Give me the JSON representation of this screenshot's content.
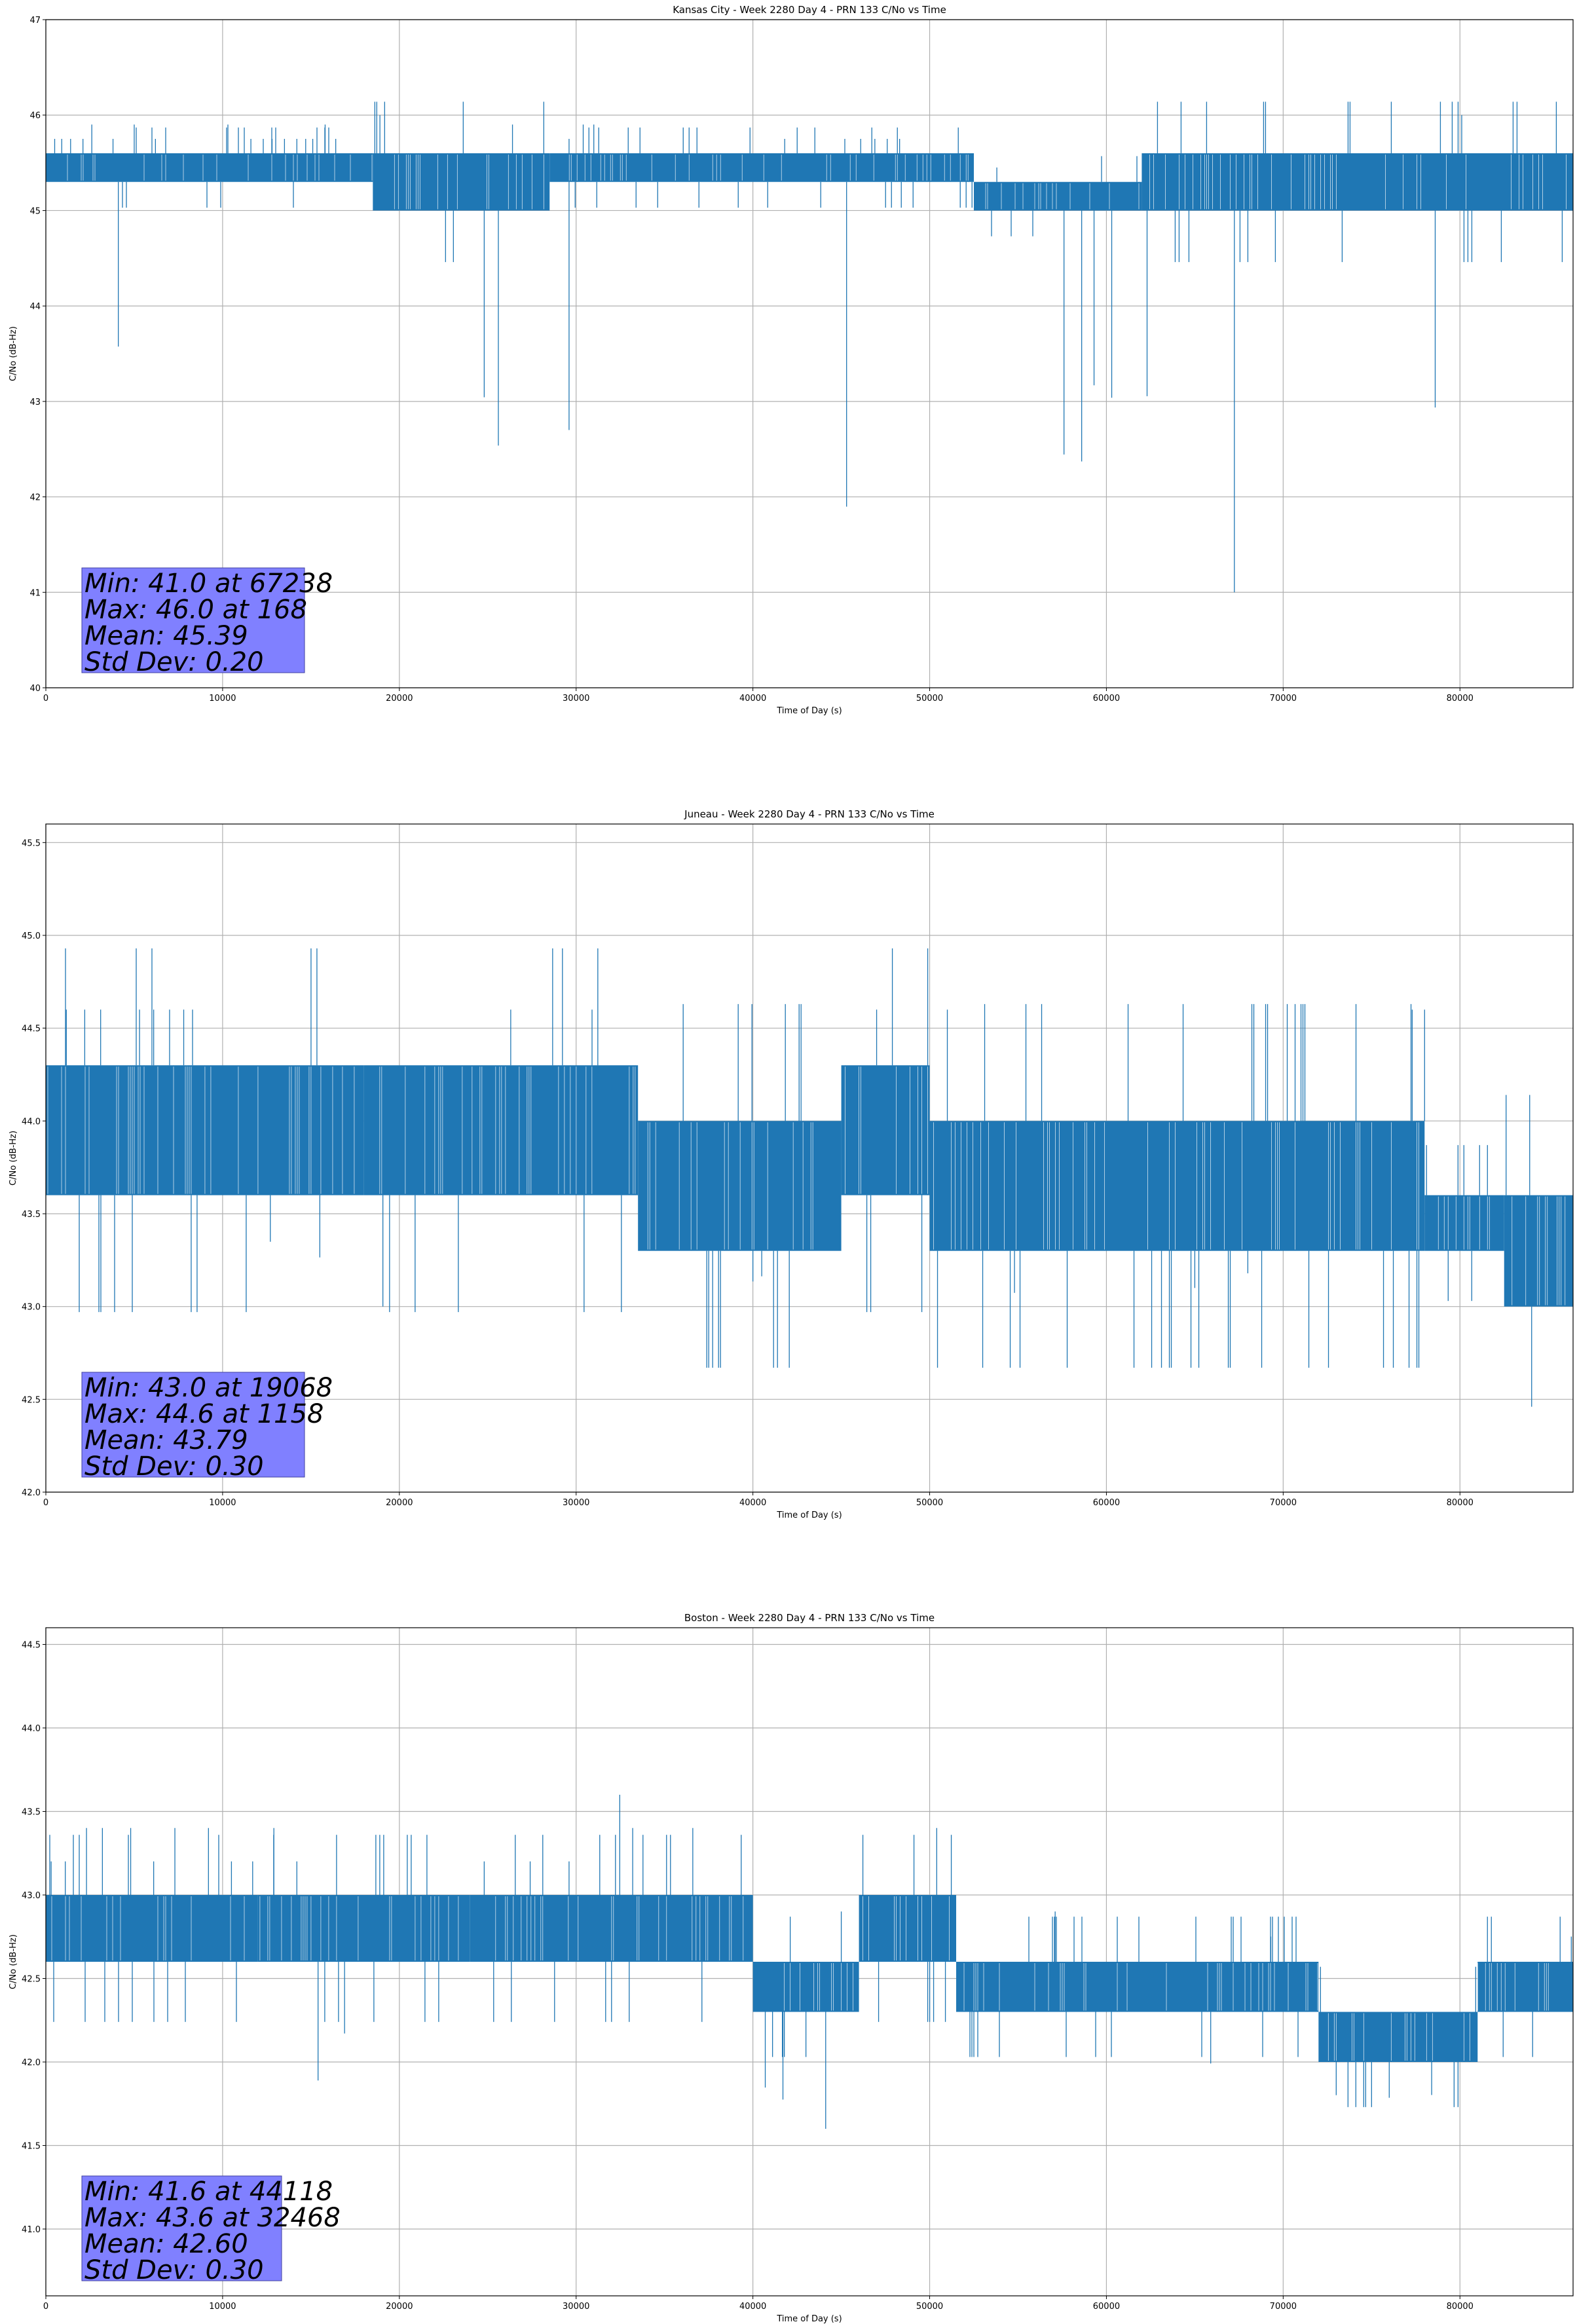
{
  "chart_data": [
    {
      "type": "line",
      "title": "Kansas City - Week 2280 Day 4 - PRN 133 C/No vs Time",
      "xlabel": "Time of Day (s)",
      "ylabel": "C/No (dB-Hz)",
      "xlim": [
        0,
        86400
      ],
      "ylim": [
        40,
        47
      ],
      "xticks": [
        0,
        10000,
        20000,
        30000,
        40000,
        50000,
        60000,
        70000,
        80000
      ],
      "xtick_labels": [
        "0",
        "10000",
        "20000",
        "30000",
        "40000",
        "50000",
        "60000",
        "70000",
        "80000"
      ],
      "yticks": [
        40,
        41,
        42,
        43,
        44,
        45,
        46,
        47
      ],
      "ytick_labels": [
        "40",
        "41",
        "42",
        "43",
        "44",
        "45",
        "46",
        "47"
      ],
      "grid": true,
      "series_color": "#1f77b4",
      "series": [
        {
          "name": "C/No",
          "segments": [
            {
              "x0": 0,
              "x1": 18500,
              "low": 45.3,
              "high": 45.6
            },
            {
              "x0": 18500,
              "x1": 28500,
              "low": 45.0,
              "high": 45.6
            },
            {
              "x0": 28500,
              "x1": 52500,
              "low": 45.3,
              "high": 45.6
            },
            {
              "x0": 52500,
              "x1": 62000,
              "low": 45.0,
              "high": 45.3
            },
            {
              "x0": 62000,
              "x1": 86400,
              "low": 45.0,
              "high": 45.6
            }
          ],
          "spikes_up": [
            500,
            900,
            1400,
            2100,
            2600,
            3800,
            5000,
            6200,
            10300,
            11600,
            12300,
            12800,
            13500,
            14200,
            14700,
            15100,
            15800,
            16400,
            18900,
            26400,
            29600,
            30400,
            31000,
            41800,
            45200,
            46100,
            46900,
            47600,
            48300,
            53800,
            80100
          ],
          "spikes_down": [
            4100,
            24800,
            25600,
            29600,
            45300,
            57600,
            58600,
            59300,
            60300,
            62300,
            67238,
            78600
          ]
        }
      ],
      "stats": {
        "min_value": 41.0,
        "min_time": 67238,
        "max_value": 46.0,
        "max_time": 168,
        "mean": 45.39,
        "std_dev": 0.2
      },
      "stats_lines": [
        "Min: 41.0 at 67238",
        "Max: 46.0 at 168",
        "Mean: 45.39",
        "Std Dev: 0.20"
      ]
    },
    {
      "type": "line",
      "title": "Juneau - Week 2280 Day 4 - PRN 133 C/No vs Time",
      "xlabel": "Time of Day (s)",
      "ylabel": "C/No (dB-Hz)",
      "xlim": [
        0,
        86400
      ],
      "ylim": [
        42.0,
        45.6
      ],
      "xticks": [
        0,
        10000,
        20000,
        30000,
        40000,
        50000,
        60000,
        70000,
        80000
      ],
      "xtick_labels": [
        "0",
        "10000",
        "20000",
        "30000",
        "40000",
        "50000",
        "60000",
        "70000",
        "80000"
      ],
      "yticks": [
        42.0,
        42.5,
        43.0,
        43.5,
        44.0,
        44.5,
        45.0,
        45.5
      ],
      "ytick_labels": [
        "42.0",
        "42.5",
        "43.0",
        "43.5",
        "44.0",
        "44.5",
        "45.0",
        "45.5"
      ],
      "grid": true,
      "series_color": "#1f77b4",
      "series": [
        {
          "name": "C/No",
          "segments": [
            {
              "x0": 0,
              "x1": 8000,
              "low": 43.6,
              "high": 44.3
            },
            {
              "x0": 8000,
              "x1": 18000,
              "low": 43.6,
              "high": 44.3
            },
            {
              "x0": 18000,
              "x1": 33500,
              "low": 43.6,
              "high": 44.3
            },
            {
              "x0": 33500,
              "x1": 45000,
              "low": 43.3,
              "high": 44.0
            },
            {
              "x0": 45000,
              "x1": 50000,
              "low": 43.6,
              "high": 44.3
            },
            {
              "x0": 50000,
              "x1": 78000,
              "low": 43.3,
              "high": 44.0
            },
            {
              "x0": 78000,
              "x1": 82500,
              "low": 43.3,
              "high": 43.6
            },
            {
              "x0": 82500,
              "x1": 86400,
              "low": 43.0,
              "high": 43.6
            }
          ],
          "spikes_up": [
            1158,
            2200,
            3100,
            5300,
            6100,
            7000,
            7800,
            8300,
            26300,
            30900,
            47000,
            51000,
            77300,
            78000
          ],
          "spikes_down": [
            12700,
            15500,
            19068,
            40000,
            40500,
            54800,
            65000,
            68000
          ]
        }
      ],
      "stats": {
        "min_value": 43.0,
        "min_time": 19068,
        "max_value": 44.6,
        "max_time": 1158,
        "mean": 43.79,
        "std_dev": 0.3
      },
      "stats_lines": [
        "Min: 43.0 at 19068",
        "Max: 44.6 at 1158",
        "Mean: 43.79",
        "Std Dev: 0.30"
      ]
    },
    {
      "type": "line",
      "title": "Boston - Week 2280 Day 4 - PRN 133 C/No vs Time",
      "xlabel": "Time of Day (s)",
      "ylabel": "C/No (dB-Hz)",
      "xlim": [
        0,
        86400
      ],
      "ylim": [
        40.6,
        44.6
      ],
      "xticks": [
        0,
        10000,
        20000,
        30000,
        40000,
        50000,
        60000,
        70000,
        80000
      ],
      "xtick_labels": [
        "0",
        "10000",
        "20000",
        "30000",
        "40000",
        "50000",
        "60000",
        "70000",
        "80000"
      ],
      "yticks": [
        41.0,
        41.5,
        42.0,
        42.5,
        43.0,
        43.5,
        44.0,
        44.5
      ],
      "ytick_labels": [
        "41.0",
        "41.5",
        "42.0",
        "42.5",
        "43.0",
        "43.5",
        "44.0",
        "44.5"
      ],
      "grid": true,
      "series_color": "#1f77b4",
      "series": [
        {
          "name": "C/No",
          "segments": [
            {
              "x0": 0,
              "x1": 12000,
              "low": 42.6,
              "high": 43.0
            },
            {
              "x0": 12000,
              "x1": 24000,
              "low": 42.6,
              "high": 43.0
            },
            {
              "x0": 24000,
              "x1": 40000,
              "low": 42.6,
              "high": 43.0
            },
            {
              "x0": 40000,
              "x1": 46000,
              "low": 42.3,
              "high": 42.6
            },
            {
              "x0": 46000,
              "x1": 51500,
              "low": 42.6,
              "high": 43.0
            },
            {
              "x0": 51500,
              "x1": 72000,
              "low": 42.3,
              "high": 42.6
            },
            {
              "x0": 72000,
              "x1": 81000,
              "low": 42.0,
              "high": 42.3
            },
            {
              "x0": 81000,
              "x1": 86400,
              "low": 42.3,
              "high": 42.6
            }
          ],
          "spikes_up": [
            300,
            1100,
            2300,
            3200,
            4800,
            6100,
            7300,
            9200,
            10500,
            11700,
            12900,
            14200,
            24800,
            27400,
            29600,
            32468,
            33200,
            36600,
            45000,
            50400,
            57100,
            69300,
            86300
          ],
          "spikes_down": [
            15400,
            16900,
            40700,
            41700,
            44118,
            65900,
            73000,
            76000,
            78400
          ]
        }
      ],
      "stats": {
        "min_value": 41.6,
        "min_time": 44118,
        "max_value": 43.6,
        "max_time": 32468,
        "mean": 42.6,
        "std_dev": 0.3
      },
      "stats_lines": [
        "Min: 41.6 at 44118",
        "Max: 43.6 at 32468",
        "Mean: 42.60",
        "Std Dev: 0.30"
      ]
    }
  ],
  "style": {
    "grid_color": "#b0b0b0",
    "stats_box_fill": "#8080ff",
    "axis_color": "#000000"
  }
}
